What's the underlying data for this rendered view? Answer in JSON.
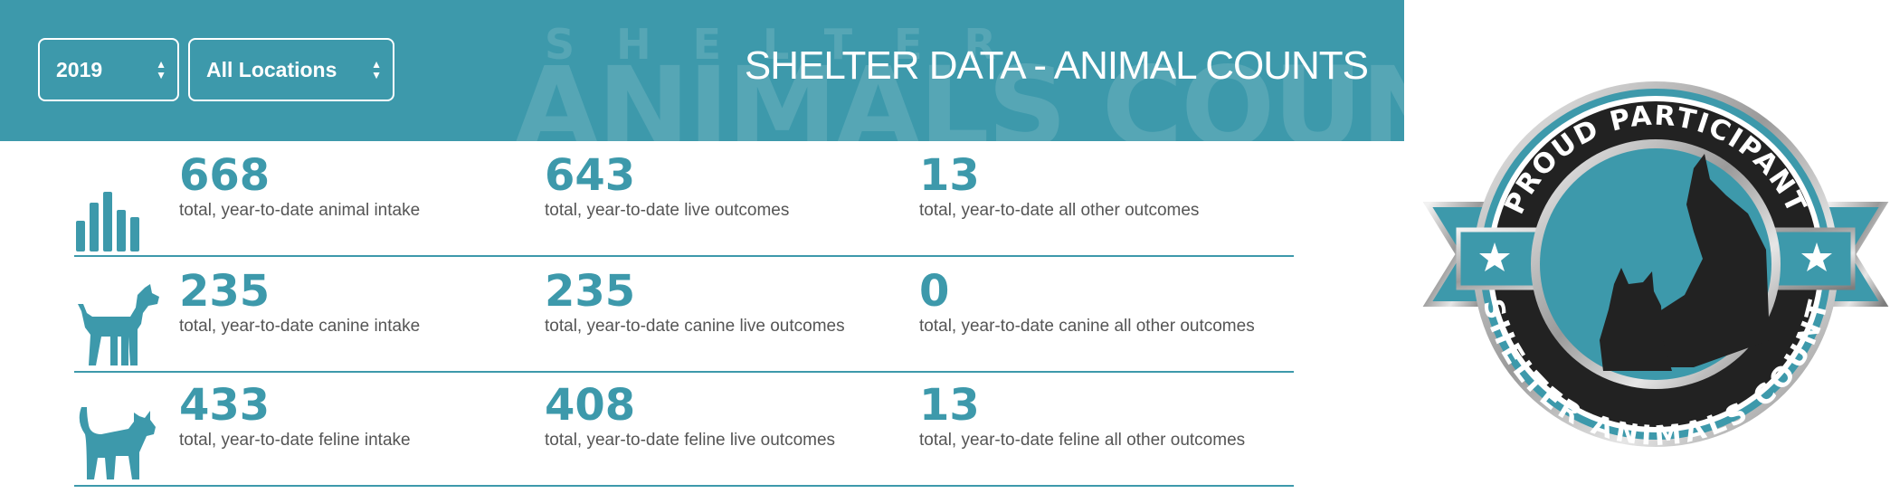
{
  "header": {
    "title": "SHELTER DATA - ANIMAL COUNTS",
    "year_select": {
      "value": "2019"
    },
    "location_select": {
      "value": "All Locations"
    },
    "watermark_top": "SHELTER",
    "watermark_bottom": "ANIMALS COUNT"
  },
  "accent_color": "#3d99ab",
  "rows": [
    {
      "icon": "bar-chart-icon",
      "stats": [
        {
          "value": "668",
          "label": "total, year-to-date animal intake"
        },
        {
          "value": "643",
          "label": "total, year-to-date live outcomes"
        },
        {
          "value": "13",
          "label": "total, year-to-date all other outcomes"
        }
      ]
    },
    {
      "icon": "dog-icon",
      "stats": [
        {
          "value": "235",
          "label": "total, year-to-date canine intake"
        },
        {
          "value": "235",
          "label": "total, year-to-date canine live outcomes"
        },
        {
          "value": "0",
          "label": "total, year-to-date canine all other outcomes"
        }
      ]
    },
    {
      "icon": "cat-icon",
      "stats": [
        {
          "value": "433",
          "label": "total, year-to-date feline intake"
        },
        {
          "value": "408",
          "label": "total, year-to-date feline live outcomes"
        },
        {
          "value": "13",
          "label": "total, year-to-date feline all other outcomes"
        }
      ]
    }
  ],
  "badge": {
    "top_text": "PROUD PARTICIPANT",
    "bottom_text": "SHELTER ANIMALS COUNT"
  }
}
